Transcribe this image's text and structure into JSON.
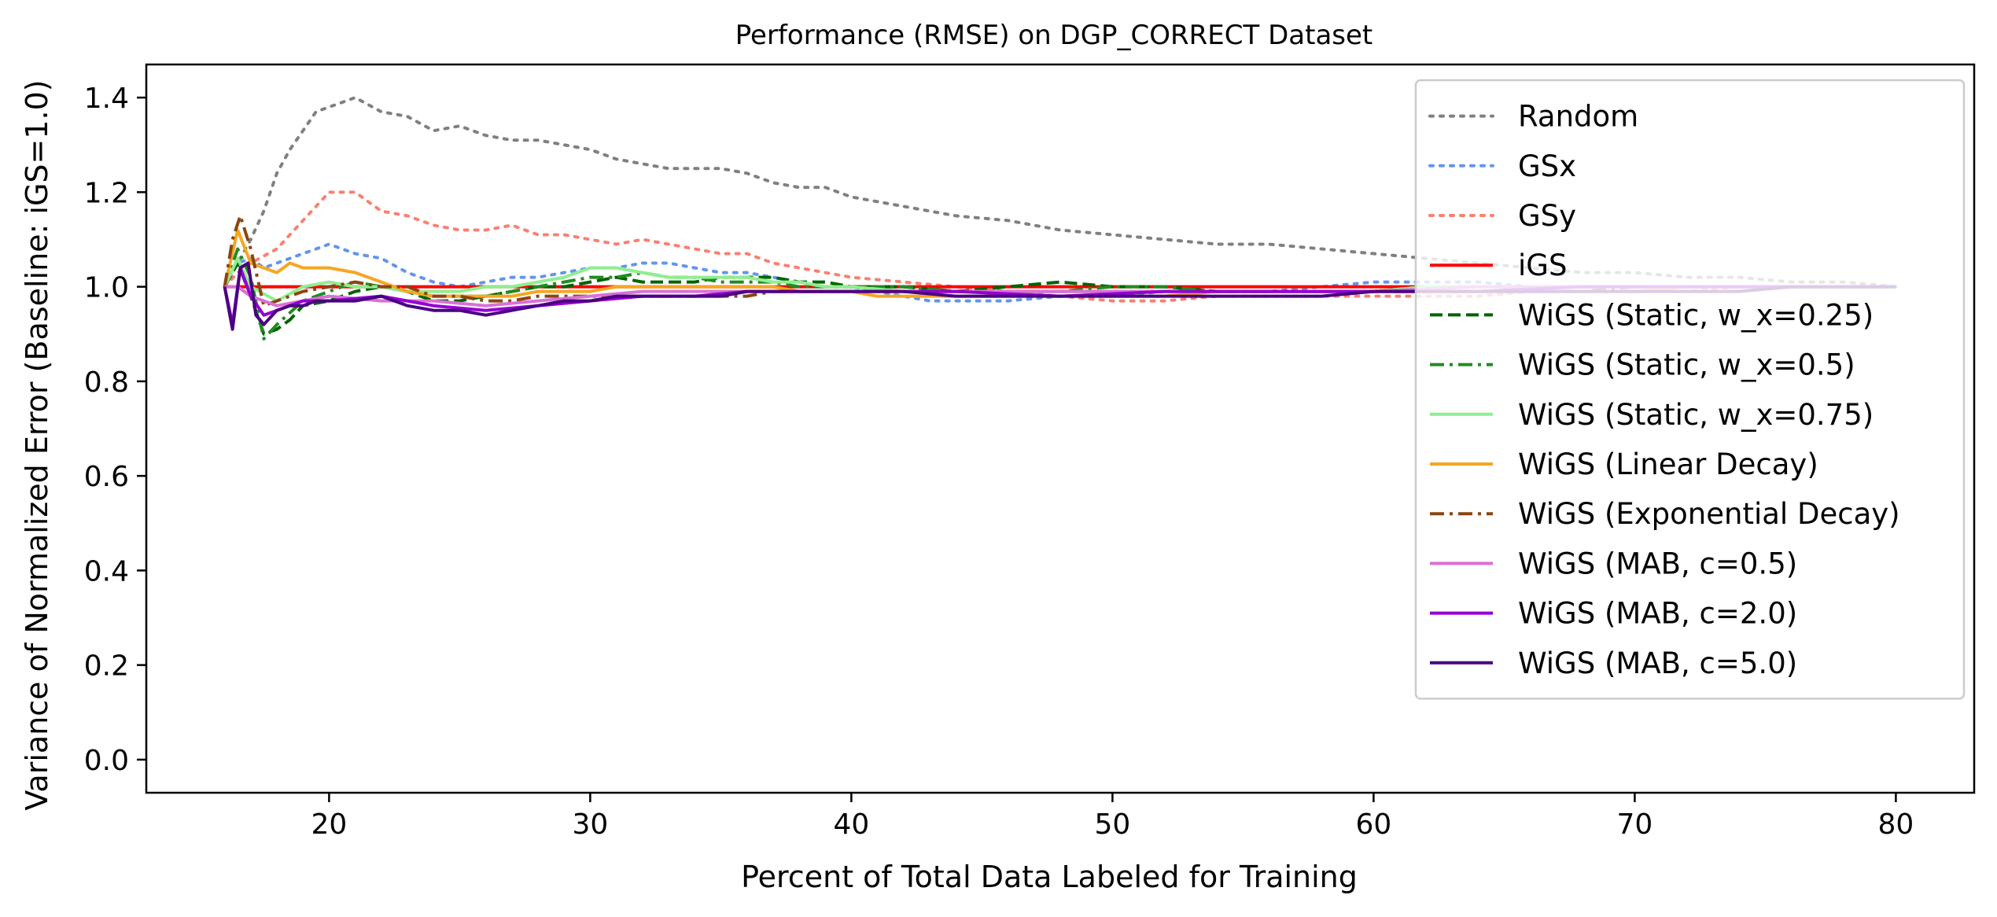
{
  "chart_data": {
    "type": "line",
    "title": "Performance (RMSE) on DGP_CORRECT Dataset",
    "xlabel": "Percent of Total Data Labeled for Training",
    "ylabel": "Variance of Normalized Error (Baseline: iGS=1.0)",
    "xlim": [
      13,
      83
    ],
    "ylim": [
      -0.07,
      1.47
    ],
    "xticks": [
      20,
      30,
      40,
      50,
      60,
      70,
      80
    ],
    "xtick_labels": [
      "20",
      "30",
      "40",
      "50",
      "60",
      "70",
      "80"
    ],
    "yticks": [
      0.0,
      0.2,
      0.4,
      0.6,
      0.8,
      1.0,
      1.2,
      1.4
    ],
    "ytick_labels": [
      "0.0",
      "0.2",
      "0.4",
      "0.6",
      "0.8",
      "1.0",
      "1.2",
      "1.4"
    ],
    "grid": false,
    "legend_position": "top-right",
    "series": [
      {
        "name": "Random",
        "color": "#808080",
        "dash": "dotted",
        "x": [
          16,
          16.5,
          17,
          17.5,
          18,
          18.5,
          19,
          19.5,
          20,
          21,
          22,
          23,
          24,
          25,
          26,
          27,
          28,
          29,
          30,
          31,
          32,
          33,
          34,
          35,
          36,
          37,
          38,
          39,
          40,
          42,
          44,
          46,
          48,
          50,
          52,
          54,
          56,
          58,
          60,
          62,
          64,
          66,
          68,
          70,
          72,
          74,
          76,
          78,
          80
        ],
        "y": [
          1.0,
          1.05,
          1.1,
          1.16,
          1.24,
          1.29,
          1.33,
          1.37,
          1.38,
          1.4,
          1.37,
          1.36,
          1.33,
          1.34,
          1.32,
          1.31,
          1.31,
          1.3,
          1.29,
          1.27,
          1.26,
          1.25,
          1.25,
          1.25,
          1.24,
          1.22,
          1.21,
          1.21,
          1.19,
          1.17,
          1.15,
          1.14,
          1.12,
          1.11,
          1.1,
          1.09,
          1.09,
          1.08,
          1.07,
          1.06,
          1.05,
          1.04,
          1.03,
          1.03,
          1.02,
          1.02,
          1.01,
          1.01,
          1.0
        ]
      },
      {
        "name": "GSx",
        "color": "#6495ED",
        "dash": "dotted",
        "x": [
          16,
          16.5,
          17,
          17.5,
          18,
          19,
          20,
          21,
          22,
          23,
          24,
          25,
          26,
          27,
          28,
          29,
          30,
          31,
          32,
          33,
          34,
          35,
          36,
          37,
          38,
          39,
          40,
          41,
          42,
          43,
          44,
          46,
          48,
          50,
          52,
          54,
          56,
          58,
          60,
          62,
          64,
          66,
          68,
          70,
          72,
          74,
          76,
          78,
          80
        ],
        "y": [
          1.0,
          1.05,
          1.06,
          1.04,
          1.05,
          1.07,
          1.09,
          1.07,
          1.06,
          1.03,
          1.01,
          1.0,
          1.01,
          1.02,
          1.02,
          1.03,
          1.04,
          1.04,
          1.05,
          1.05,
          1.04,
          1.03,
          1.03,
          1.02,
          1.01,
          1.0,
          1.0,
          0.99,
          0.98,
          0.97,
          0.97,
          0.97,
          0.98,
          0.98,
          0.99,
          0.99,
          0.99,
          1.0,
          1.01,
          1.01,
          1.01,
          1.0,
          1.0,
          1.0,
          1.0,
          1.0,
          1.0,
          1.0,
          1.0
        ]
      },
      {
        "name": "GSy",
        "color": "#FA8072",
        "dash": "dotted",
        "x": [
          16,
          16.5,
          17,
          18,
          19,
          20,
          21,
          22,
          23,
          24,
          25,
          26,
          27,
          28,
          29,
          30,
          31,
          32,
          33,
          34,
          35,
          36,
          37,
          38,
          39,
          40,
          42,
          44,
          46,
          48,
          50,
          52,
          54,
          56,
          58,
          60,
          62,
          64,
          66,
          68,
          70,
          72,
          74,
          76,
          78,
          80
        ],
        "y": [
          1.0,
          1.03,
          1.05,
          1.08,
          1.14,
          1.2,
          1.2,
          1.16,
          1.15,
          1.13,
          1.12,
          1.12,
          1.13,
          1.11,
          1.11,
          1.1,
          1.09,
          1.1,
          1.09,
          1.08,
          1.07,
          1.07,
          1.05,
          1.04,
          1.03,
          1.02,
          1.01,
          1.0,
          0.99,
          0.98,
          0.97,
          0.97,
          0.98,
          0.98,
          0.98,
          0.98,
          0.98,
          0.98,
          0.99,
          0.99,
          0.99,
          0.99,
          1.0,
          1.0,
          1.0,
          1.0
        ]
      },
      {
        "name": "iGS",
        "color": "#FF0000",
        "dash": "solid",
        "x": [
          16,
          80
        ],
        "y": [
          1.0,
          1.0
        ]
      },
      {
        "name": "WiGS (Static, w_x=0.25)",
        "color": "#006400",
        "dash": "dashed",
        "x": [
          16,
          16.5,
          17,
          17.5,
          18,
          18.5,
          19,
          20,
          21,
          22,
          23,
          24,
          25,
          26,
          27,
          28,
          29,
          30,
          31,
          32,
          33,
          34,
          35,
          36,
          37,
          38,
          39,
          40,
          42,
          44,
          46,
          48,
          50,
          52,
          54,
          56,
          58,
          60,
          62,
          64,
          66,
          68,
          70,
          72,
          74,
          76,
          78,
          80
        ],
        "y": [
          1.0,
          1.05,
          0.98,
          0.9,
          0.91,
          0.93,
          0.96,
          0.97,
          0.99,
          1.0,
          0.99,
          0.97,
          0.97,
          0.98,
          0.99,
          1.0,
          1.0,
          1.01,
          1.02,
          1.01,
          1.01,
          1.01,
          1.02,
          1.02,
          1.02,
          1.01,
          1.01,
          1.0,
          1.0,
          0.99,
          1.0,
          1.01,
          1.0,
          1.0,
          0.99,
          0.99,
          0.99,
          0.99,
          1.0,
          1.0,
          1.0,
          1.0,
          1.0,
          1.0,
          1.0,
          1.0,
          1.0,
          1.0
        ]
      },
      {
        "name": "WiGS (Static, w_x=0.5)",
        "color": "#228B22",
        "dash": "dashdot",
        "x": [
          16,
          16.5,
          17,
          17.5,
          18,
          19,
          20,
          21,
          22,
          23,
          24,
          25,
          26,
          27,
          28,
          29,
          30,
          31,
          32,
          33,
          34,
          35,
          36,
          37,
          38,
          39,
          40,
          42,
          44,
          46,
          48,
          50,
          52,
          54,
          56,
          58,
          60,
          62,
          64,
          66,
          68,
          70,
          72,
          74,
          76,
          78,
          80
        ],
        "y": [
          1.0,
          1.08,
          1.02,
          0.89,
          0.92,
          0.97,
          0.99,
          1.01,
          1.0,
          0.99,
          0.98,
          0.98,
          0.98,
          0.99,
          1.0,
          1.01,
          1.02,
          1.02,
          1.03,
          1.02,
          1.02,
          1.01,
          1.01,
          1.01,
          1.0,
          1.0,
          1.0,
          1.0,
          0.99,
          0.99,
          0.99,
          1.0,
          1.0,
          0.99,
          0.99,
          0.99,
          0.99,
          1.0,
          1.0,
          1.0,
          1.0,
          1.0,
          1.0,
          1.0,
          1.0,
          1.0,
          1.0
        ]
      },
      {
        "name": "WiGS (Static, w_x=0.75)",
        "color": "#90EE90",
        "dash": "solid",
        "x": [
          16,
          16.5,
          17,
          18,
          19,
          20,
          21,
          22,
          23,
          24,
          25,
          26,
          27,
          28,
          29,
          30,
          31,
          32,
          33,
          34,
          35,
          36,
          37,
          38,
          39,
          40,
          42,
          44,
          46,
          48,
          50,
          52,
          54,
          56,
          58,
          60,
          62,
          64,
          66,
          68,
          70,
          72,
          74,
          76,
          78,
          80
        ],
        "y": [
          1.0,
          1.06,
          1.0,
          0.97,
          1.0,
          1.01,
          1.0,
          1.0,
          0.99,
          0.99,
          0.99,
          1.0,
          1.0,
          1.01,
          1.02,
          1.04,
          1.04,
          1.03,
          1.02,
          1.02,
          1.02,
          1.02,
          1.01,
          1.01,
          1.0,
          1.0,
          0.99,
          0.99,
          0.99,
          0.99,
          0.99,
          0.99,
          0.99,
          0.99,
          0.99,
          0.99,
          1.0,
          1.0,
          1.0,
          1.0,
          1.0,
          1.0,
          1.0,
          1.0,
          1.0,
          1.0
        ]
      },
      {
        "name": "WiGS (Linear Decay)",
        "color": "#F5A623",
        "dash": "solid",
        "x": [
          16,
          16.5,
          17,
          17.5,
          18,
          18.5,
          19,
          20,
          21,
          22,
          23,
          24,
          25,
          26,
          27,
          28,
          29,
          30,
          31,
          32,
          33,
          34,
          35,
          36,
          37,
          38,
          39,
          40,
          41,
          42,
          44,
          46,
          48,
          50,
          52,
          54,
          56,
          58,
          60,
          62,
          64,
          66,
          68,
          70,
          72,
          74,
          76,
          78,
          80
        ],
        "y": [
          1.0,
          1.12,
          1.05,
          1.04,
          1.03,
          1.05,
          1.04,
          1.04,
          1.03,
          1.01,
          0.99,
          0.98,
          0.98,
          0.98,
          0.98,
          0.99,
          0.99,
          0.99,
          1.0,
          1.0,
          1.0,
          1.0,
          1.0,
          1.0,
          1.0,
          0.99,
          0.99,
          0.99,
          0.98,
          0.98,
          0.98,
          0.98,
          0.98,
          0.98,
          0.98,
          0.99,
          0.99,
          0.99,
          0.99,
          0.99,
          0.99,
          0.99,
          0.99,
          0.99,
          1.0,
          1.0,
          1.0,
          1.0,
          1.0
        ]
      },
      {
        "name": "WiGS (Exponential Decay)",
        "color": "#8B4513",
        "dash": "dashdot",
        "x": [
          16,
          16.3,
          16.6,
          17,
          17.5,
          18,
          19,
          20,
          21,
          22,
          23,
          24,
          25,
          26,
          27,
          28,
          29,
          30,
          31,
          32,
          33,
          34,
          35,
          36,
          37,
          38,
          39,
          40,
          42,
          44,
          46,
          48,
          50,
          52,
          54,
          56,
          58,
          60,
          62,
          64,
          66,
          68,
          70,
          72,
          74,
          76,
          78,
          80
        ],
        "y": [
          1.0,
          1.1,
          1.15,
          1.08,
          0.96,
          0.97,
          0.99,
          1.0,
          1.01,
          1.0,
          1.0,
          0.98,
          0.98,
          0.97,
          0.97,
          0.98,
          0.98,
          0.98,
          0.98,
          0.98,
          0.98,
          0.98,
          0.98,
          0.98,
          0.99,
          0.99,
          0.99,
          0.99,
          0.99,
          0.99,
          0.99,
          0.99,
          0.99,
          0.99,
          0.99,
          0.99,
          0.99,
          0.99,
          0.99,
          0.99,
          0.99,
          0.99,
          1.0,
          1.0,
          1.0,
          1.0,
          1.0,
          1.0
        ]
      },
      {
        "name": "WiGS (MAB, c=0.5)",
        "color": "#DA70D6",
        "dash": "solid",
        "x": [
          16,
          16.5,
          17,
          18,
          19,
          20,
          22,
          24,
          26,
          28,
          30,
          32,
          34,
          36,
          38,
          40,
          44,
          48,
          52,
          56,
          60,
          64,
          68,
          72,
          76,
          80
        ],
        "y": [
          1.0,
          1.0,
          0.98,
          0.96,
          0.97,
          0.98,
          0.97,
          0.97,
          0.96,
          0.97,
          0.98,
          0.99,
          0.99,
          0.99,
          0.99,
          0.99,
          0.99,
          0.99,
          0.99,
          0.99,
          0.99,
          1.0,
          1.0,
          1.0,
          1.0,
          1.0
        ]
      },
      {
        "name": "WiGS (MAB, c=2.0)",
        "color": "#9400D3",
        "dash": "solid",
        "x": [
          16,
          16.3,
          16.6,
          17,
          17.5,
          18,
          19,
          20,
          22,
          24,
          26,
          28,
          30,
          32,
          34,
          36,
          38,
          40,
          44,
          48,
          52,
          56,
          60,
          64,
          68,
          72,
          76,
          80
        ],
        "y": [
          1.0,
          0.92,
          1.04,
          0.98,
          0.94,
          0.95,
          0.97,
          0.97,
          0.98,
          0.96,
          0.95,
          0.96,
          0.97,
          0.98,
          0.98,
          0.99,
          0.99,
          0.99,
          0.99,
          0.98,
          0.99,
          0.99,
          0.99,
          0.99,
          1.0,
          1.0,
          1.0,
          1.0
        ]
      },
      {
        "name": "WiGS (MAB, c=5.0)",
        "color": "#4B0082",
        "dash": "solid",
        "x": [
          16,
          16.3,
          16.6,
          16.9,
          17.2,
          17.5,
          18,
          18.5,
          19,
          19.5,
          20,
          21,
          22,
          23,
          24,
          25,
          26,
          27,
          28,
          29,
          30,
          31,
          32,
          33,
          34,
          35,
          36,
          37,
          38,
          39,
          40,
          42,
          44,
          46,
          48,
          50,
          52,
          54,
          56,
          58,
          60,
          62,
          64,
          66,
          68,
          70,
          72,
          74,
          76,
          78,
          80
        ],
        "y": [
          1.0,
          0.91,
          1.04,
          1.05,
          0.94,
          0.92,
          0.95,
          0.96,
          0.96,
          0.97,
          0.97,
          0.97,
          0.98,
          0.96,
          0.95,
          0.95,
          0.94,
          0.95,
          0.96,
          0.97,
          0.97,
          0.98,
          0.98,
          0.98,
          0.98,
          0.98,
          0.99,
          0.99,
          0.99,
          0.99,
          0.99,
          0.99,
          0.98,
          0.98,
          0.98,
          0.98,
          0.98,
          0.98,
          0.98,
          0.98,
          0.99,
          0.99,
          0.99,
          0.99,
          0.99,
          0.99,
          0.99,
          0.99,
          1.0,
          1.0,
          1.0
        ]
      }
    ]
  }
}
